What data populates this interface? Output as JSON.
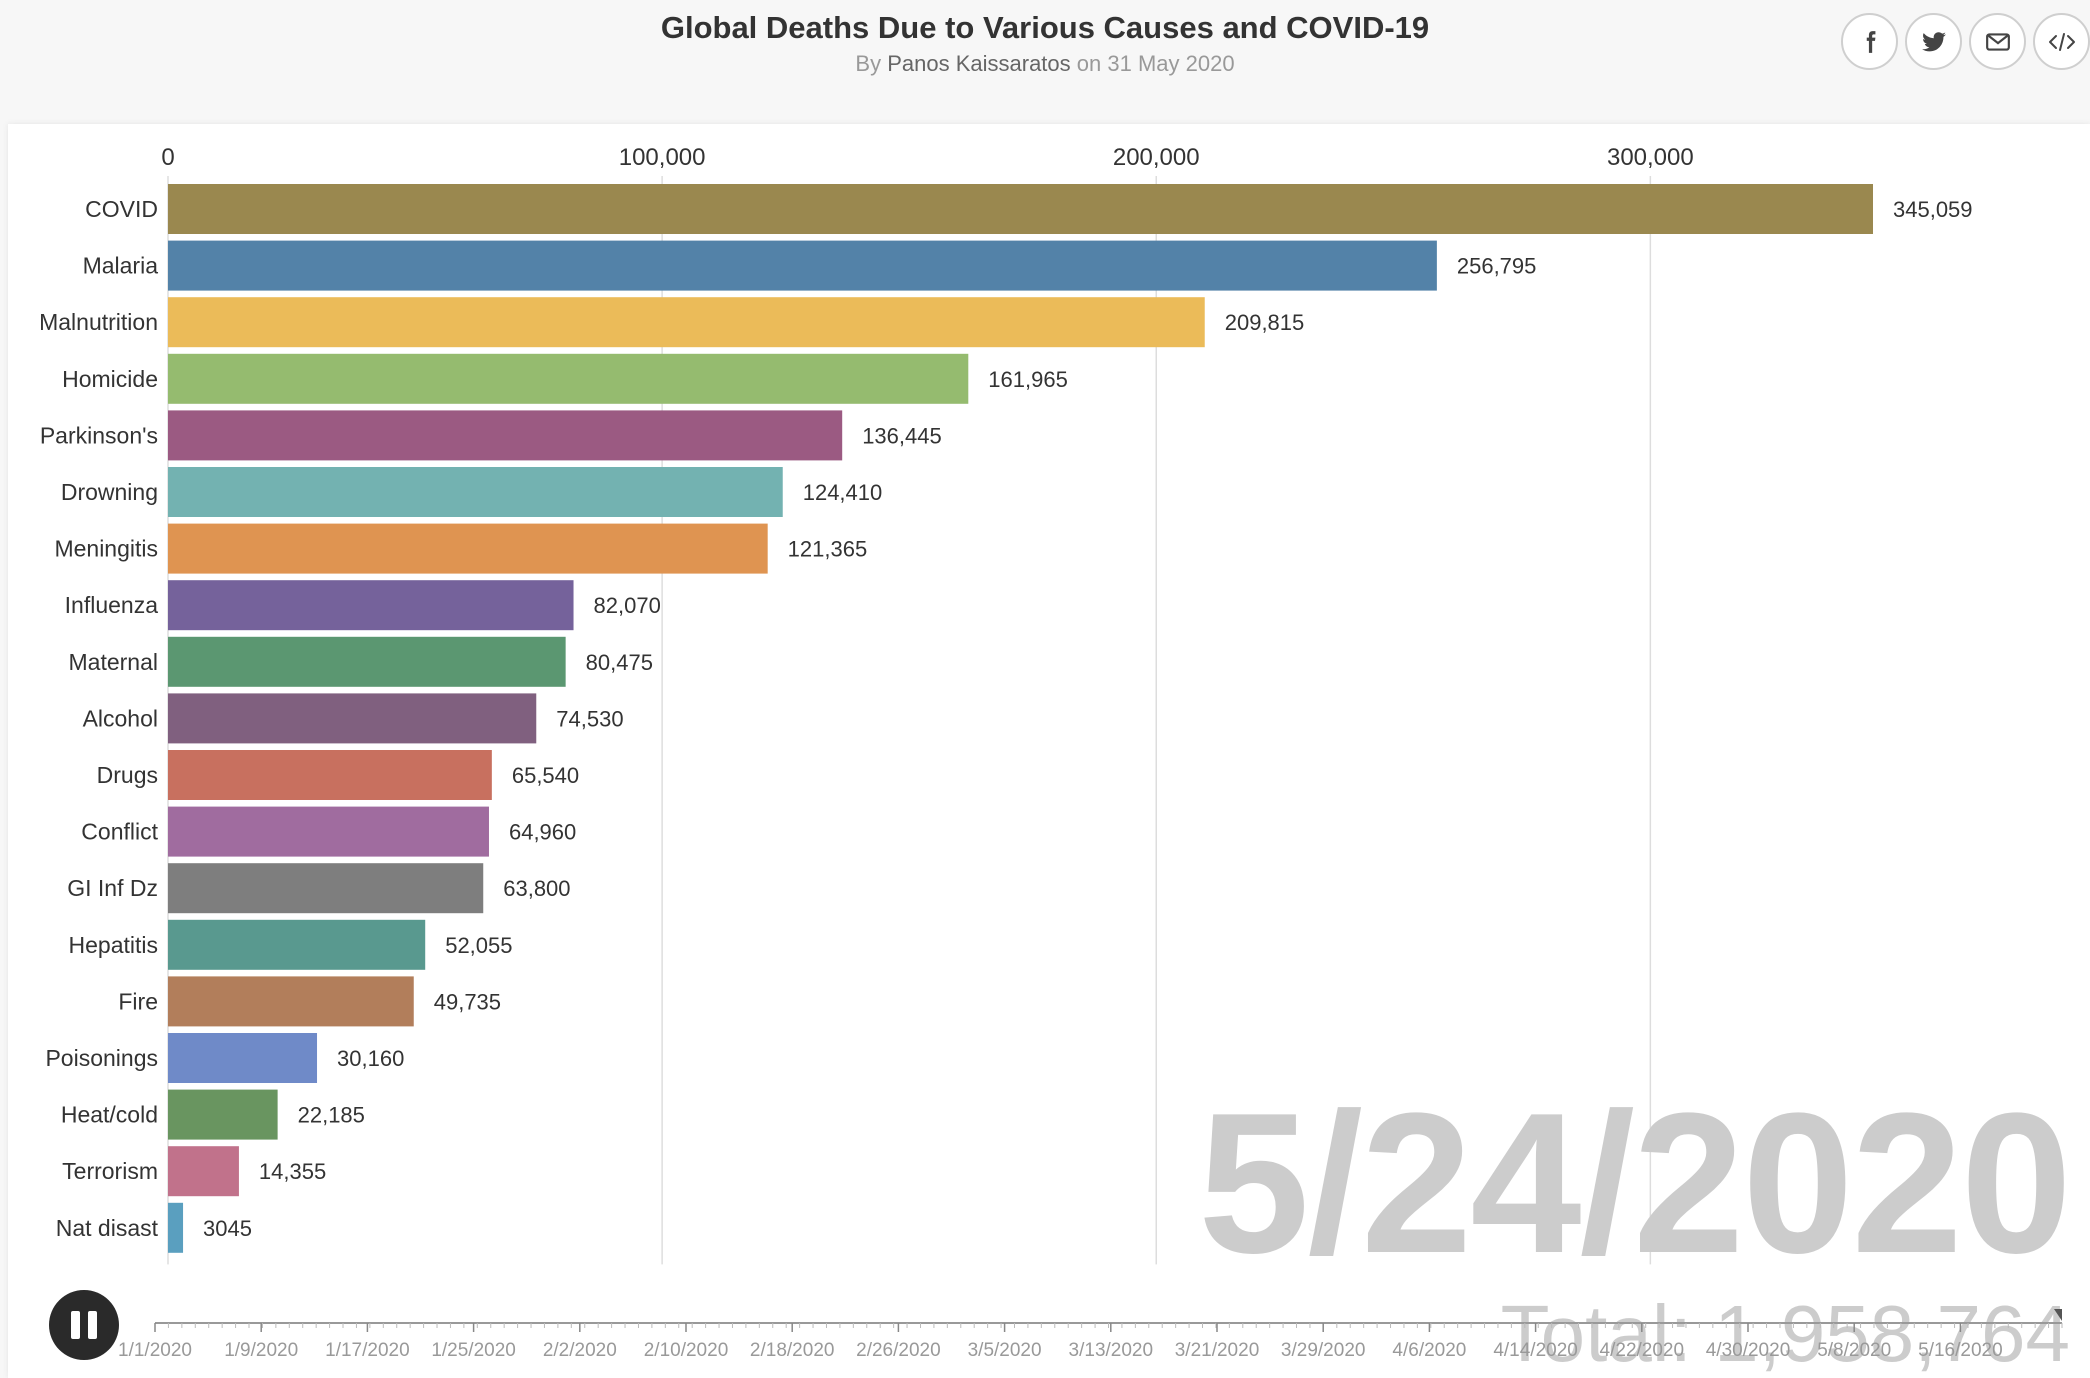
{
  "header": {
    "title": "Global Deaths Due to Various Causes and COVID-19",
    "byline_prefix": "By",
    "author": "Panos Kaissaratos",
    "byline_mid": "on",
    "date": "31 May 2020"
  },
  "share": [
    {
      "icon": "facebook-icon"
    },
    {
      "icon": "twitter-icon"
    },
    {
      "icon": "email-icon"
    },
    {
      "icon": "embed-icon"
    }
  ],
  "overlay": {
    "date": "5/24/2020",
    "total": "Total: 1,958,764"
  },
  "timeline": {
    "ticks": [
      "1/1/2020",
      "1/9/2020",
      "1/17/2020",
      "1/25/2020",
      "2/2/2020",
      "2/10/2020",
      "2/18/2020",
      "2/26/2020",
      "3/5/2020",
      "3/13/2020",
      "3/21/2020",
      "3/29/2020",
      "4/6/2020",
      "4/14/2020",
      "4/22/2020",
      "4/30/2020",
      "5/8/2020",
      "5/16/2020"
    ],
    "position": 1.0
  },
  "chart_data": {
    "type": "bar",
    "orientation": "horizontal",
    "title": "Global Deaths Due to Various Causes and COVID-19",
    "xlim": [
      0,
      345059
    ],
    "x_ticks": [
      0,
      100000,
      200000,
      300000
    ],
    "x_tick_labels": [
      "0",
      "100,000",
      "200,000",
      "300,000"
    ],
    "grid": true,
    "categories": [
      "COVID",
      "Malaria",
      "Malnutrition",
      "Homicide",
      "Parkinson's",
      "Drowning",
      "Meningitis",
      "Influenza",
      "Maternal",
      "Alcohol",
      "Drugs",
      "Conflict",
      "GI Inf Dz",
      "Hepatitis",
      "Fire",
      "Poisonings",
      "Heat/cold",
      "Terrorism",
      "Nat disast"
    ],
    "values": [
      345059,
      256795,
      209815,
      161965,
      136445,
      124410,
      121365,
      82070,
      80475,
      74530,
      65540,
      64960,
      63800,
      52055,
      49735,
      30160,
      22185,
      14355,
      3045
    ],
    "value_labels": [
      "345,059",
      "256,795",
      "209,815",
      "161,965",
      "136,445",
      "124,410",
      "121,365",
      "82,070",
      "80,475",
      "74,530",
      "65,540",
      "64,960",
      "63,800",
      "52,055",
      "49,735",
      "30,160",
      "22,185",
      "14,355",
      "3045"
    ],
    "colors": [
      "#9a884f",
      "#5382a8",
      "#ebbb59",
      "#95bb6f",
      "#9b5a82",
      "#73b2b1",
      "#df9451",
      "#75629b",
      "#5b9771",
      "#80607f",
      "#c8705f",
      "#a06c9f",
      "#7e7e7e",
      "#59998f",
      "#b27e5b",
      "#6f8ac8",
      "#699560",
      "#c1728b",
      "#5a9fbf"
    ]
  }
}
